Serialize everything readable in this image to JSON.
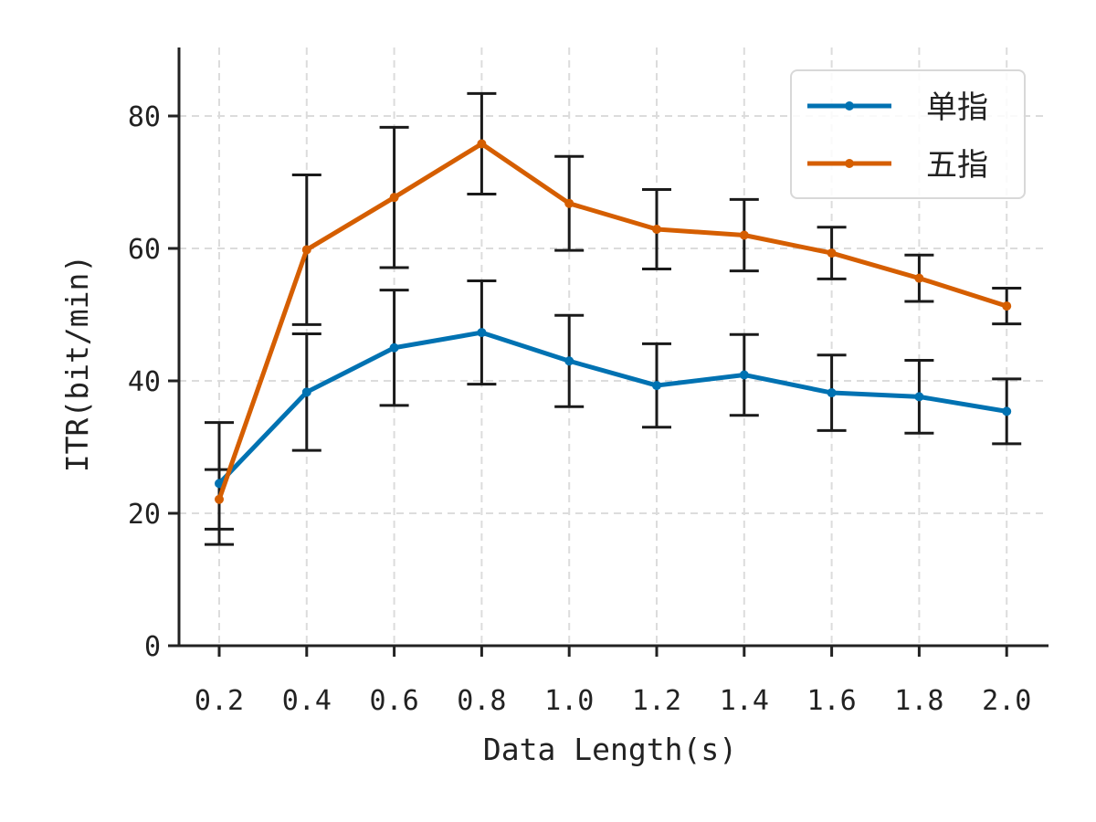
{
  "chart_data": {
    "type": "line",
    "title": "",
    "xlabel": "Data Length(s)",
    "ylabel": "ITR(bit/min)",
    "x": [
      "0.2",
      "0.4",
      "0.6",
      "0.8",
      "1.0",
      "1.2",
      "1.4",
      "1.6",
      "1.8",
      "2.0"
    ],
    "yticks": [
      "0",
      "20",
      "40",
      "60",
      "80"
    ],
    "ylim": [
      0,
      90
    ],
    "grid": true,
    "legend_position": "top-right",
    "series": [
      {
        "name": "单指",
        "color": "#0072b2",
        "values": [
          24.5,
          38.3,
          45.0,
          47.3,
          43.0,
          39.3,
          40.9,
          38.2,
          37.6,
          35.4
        ],
        "errors": [
          9.2,
          8.8,
          8.7,
          7.8,
          6.9,
          6.3,
          6.1,
          5.7,
          5.5,
          4.9
        ]
      },
      {
        "name": "五指",
        "color": "#d55e00",
        "values": [
          22.1,
          59.8,
          67.7,
          75.8,
          66.8,
          62.9,
          62.0,
          59.3,
          55.5,
          51.3
        ],
        "errors": [
          4.5,
          11.3,
          10.6,
          7.6,
          7.1,
          6.0,
          5.4,
          3.9,
          3.5,
          2.7
        ]
      }
    ]
  }
}
